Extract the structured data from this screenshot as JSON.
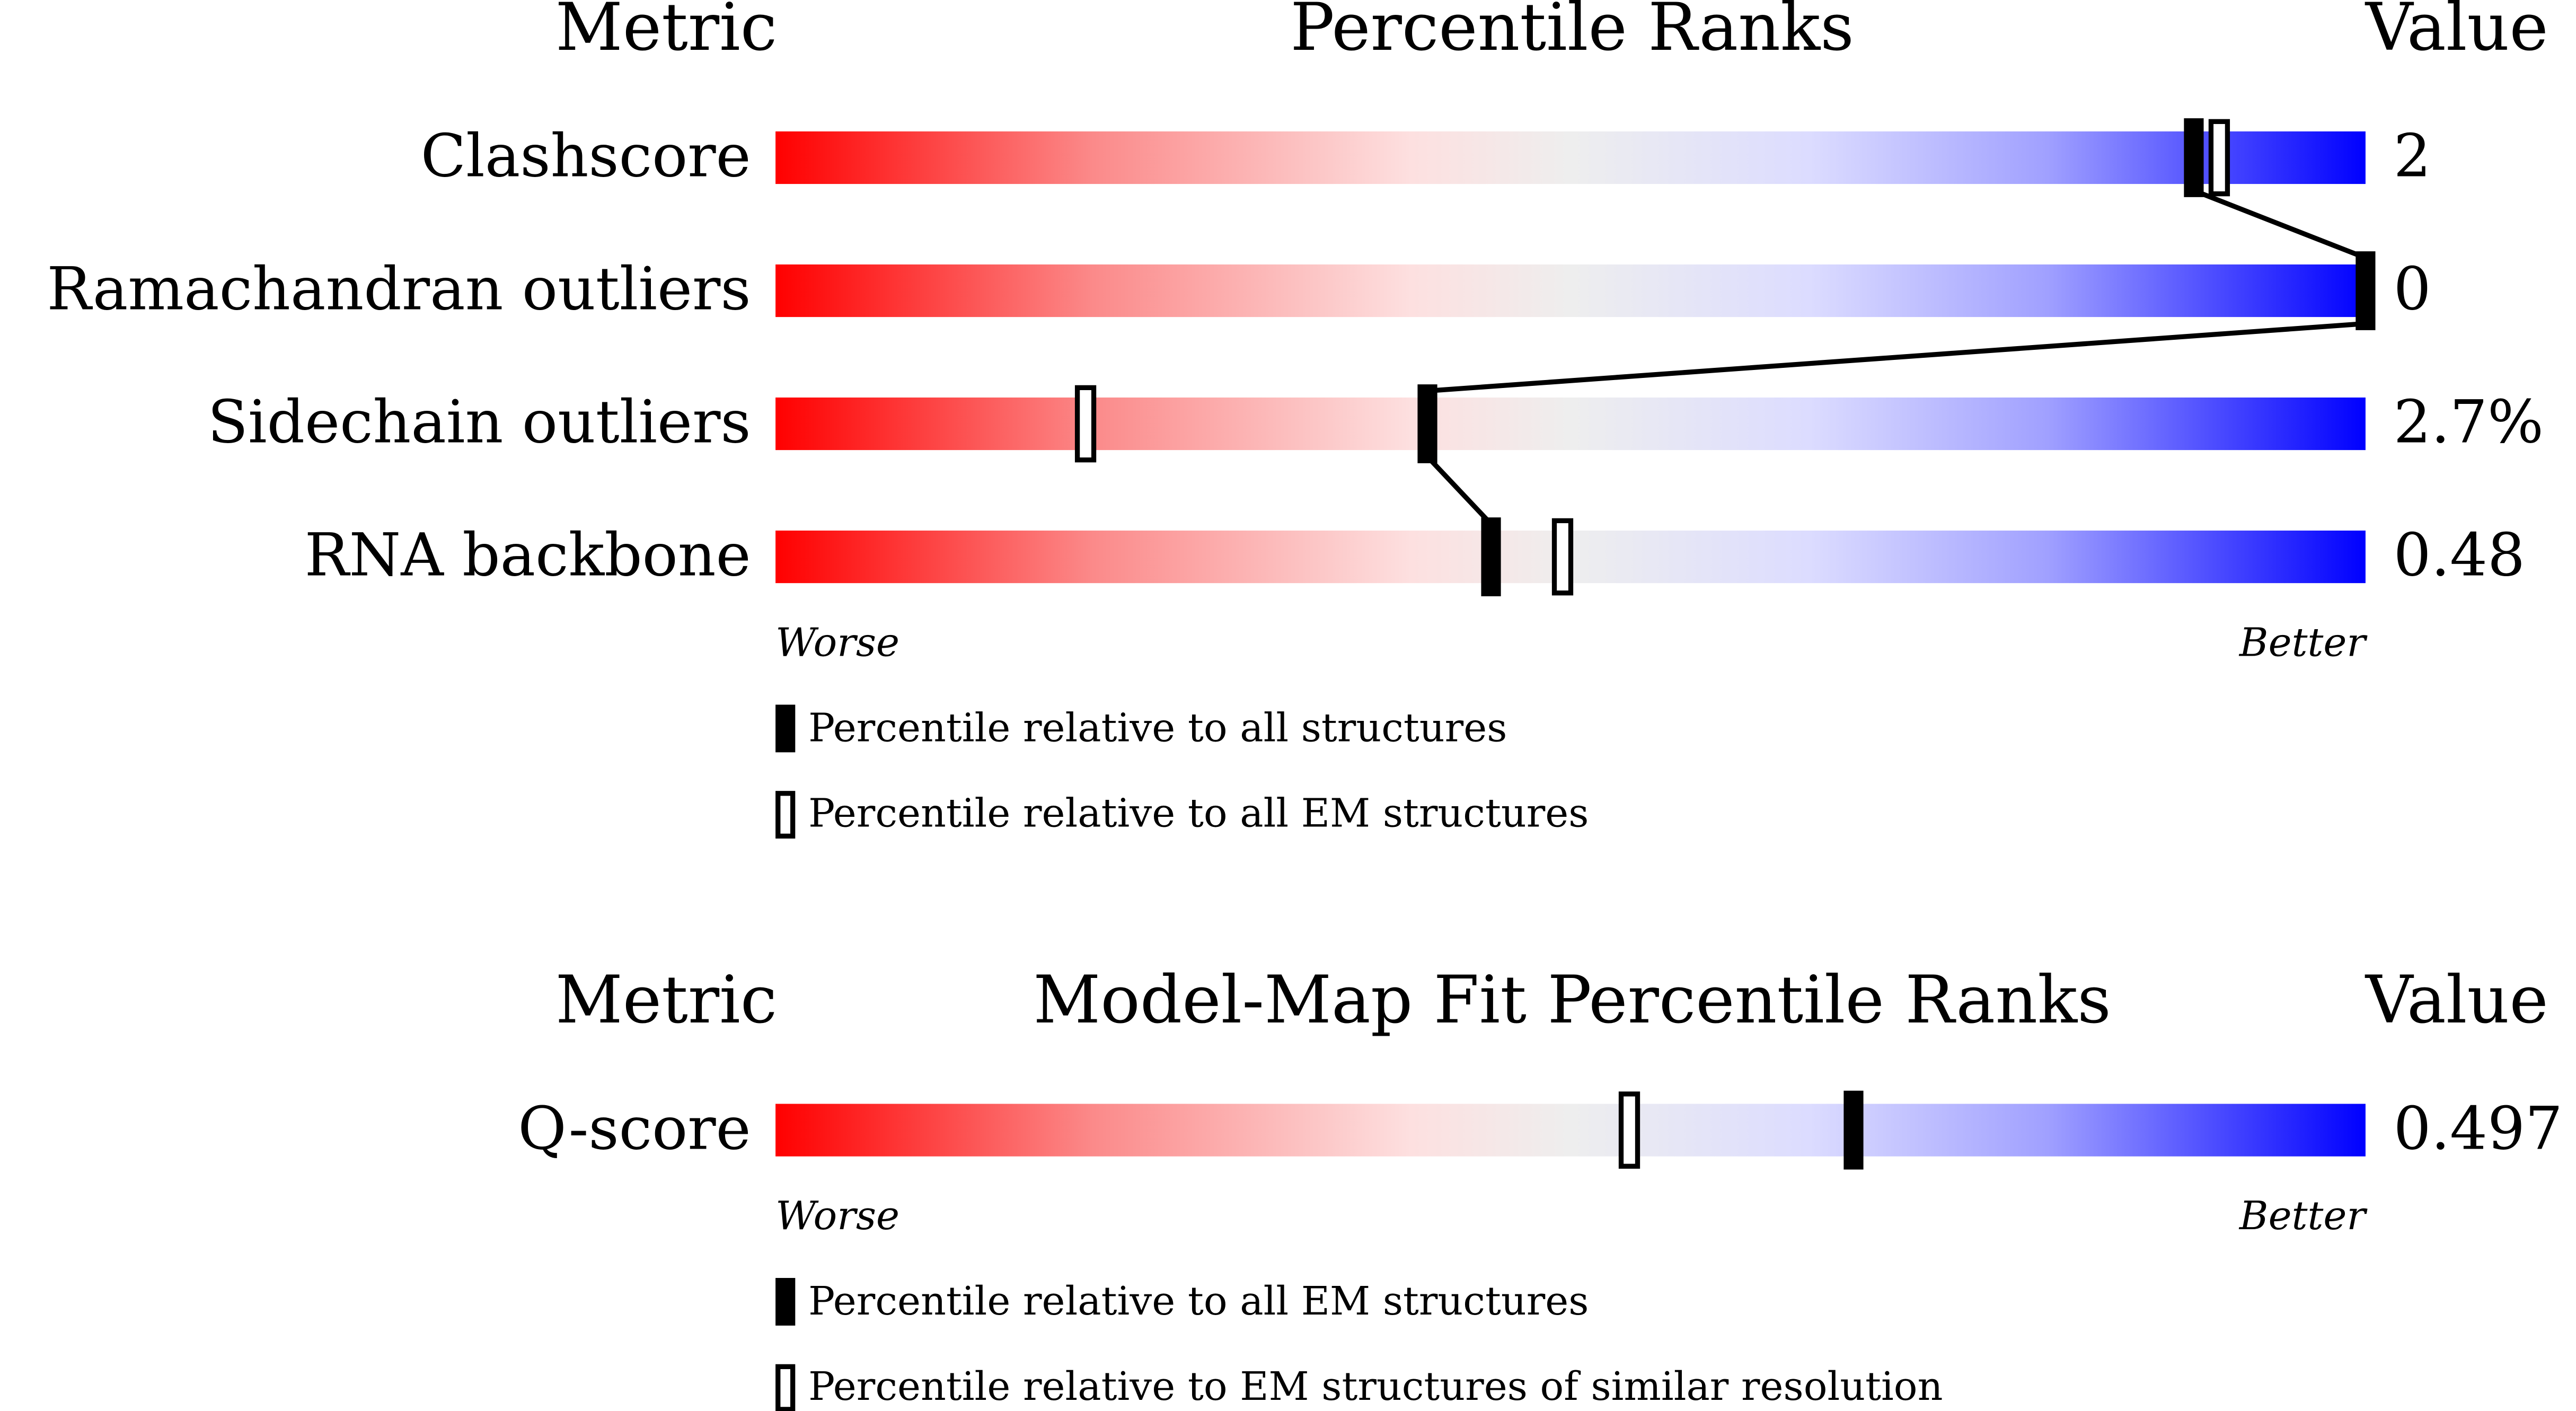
{
  "chart_data": [
    {
      "type": "slider",
      "header": {
        "metric": "Metric",
        "title": "Percentile Ranks",
        "value": "Value"
      },
      "xlim": [
        0,
        100
      ],
      "categories": [
        "Clashscore",
        "Ramachandran outliers",
        "Sidechain outliers",
        "RNA backbone"
      ],
      "metric_values": [
        "2",
        "0",
        "2.7%",
        "0.48"
      ],
      "axis_labels": {
        "low": "Worse",
        "high": "Better"
      },
      "series": [
        {
          "name": "Percentile relative to all structures",
          "style": "filled",
          "color": "#000000",
          "values": [
            89.2,
            100,
            41,
            45
          ]
        },
        {
          "name": "Percentile relative to all EM structures",
          "style": "open",
          "color": "#000000",
          "values": [
            90.8,
            null,
            19.5,
            49.5
          ]
        }
      ]
    },
    {
      "type": "slider",
      "header": {
        "metric": "Metric",
        "title": "Model-Map Fit Percentile Ranks",
        "value": "Value"
      },
      "xlim": [
        0,
        100
      ],
      "categories": [
        "Q-score"
      ],
      "metric_values": [
        "0.497"
      ],
      "axis_labels": {
        "low": "Worse",
        "high": "Better"
      },
      "series": [
        {
          "name": "Percentile relative to all EM structures",
          "style": "filled",
          "color": "#000000",
          "values": [
            67.8
          ]
        },
        {
          "name": "Percentile relative to EM structures of similar resolution",
          "style": "open",
          "color": "#000000",
          "values": [
            53.7
          ]
        }
      ]
    }
  ]
}
